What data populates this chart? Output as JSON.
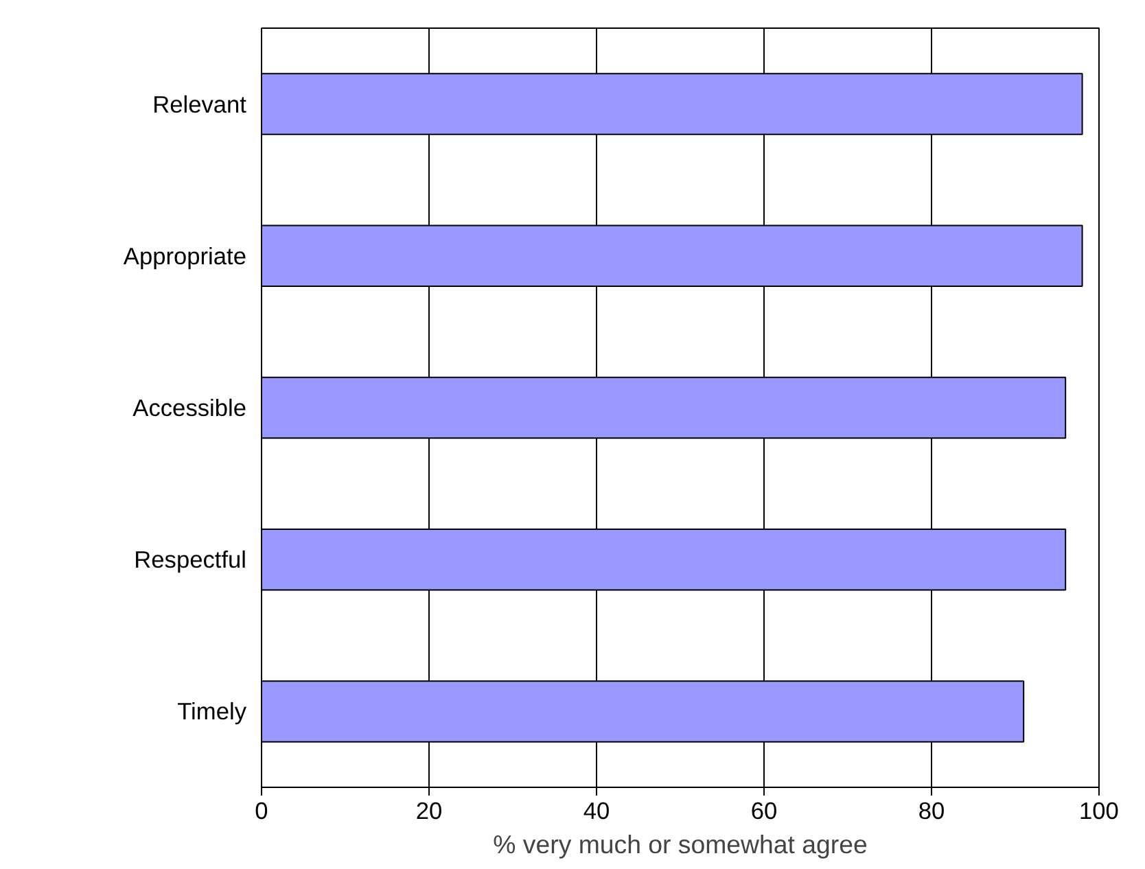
{
  "chart_data": {
    "type": "bar",
    "orientation": "horizontal",
    "xlabel": "% very much or somewhat agree",
    "categories": [
      "Relevant",
      "Appropriate",
      "Accessible",
      "Respectful",
      "Timely"
    ],
    "values": [
      98,
      98,
      96,
      96,
      91
    ],
    "color": "#9999ff",
    "xlim": [
      0,
      100
    ],
    "xticks": [
      0,
      20,
      40,
      60,
      80,
      100
    ],
    "grid": "x"
  }
}
